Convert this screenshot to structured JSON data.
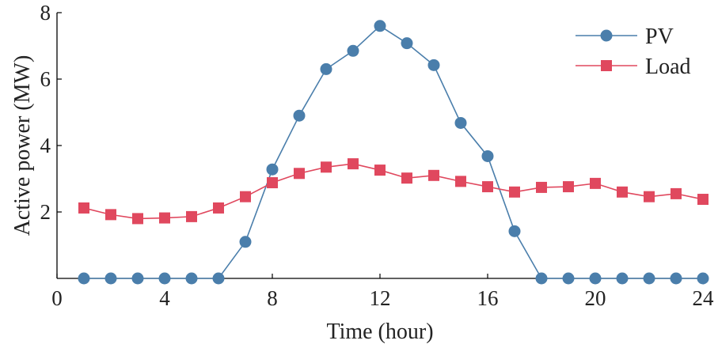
{
  "chart_data": {
    "type": "line",
    "title": "",
    "xlabel": "Time (hour)",
    "ylabel": "Active power (MW)",
    "xlim": [
      0,
      24
    ],
    "ylim": [
      0,
      8
    ],
    "xticks": [
      0,
      4,
      8,
      12,
      16,
      20,
      24
    ],
    "yticks": [
      2,
      4,
      6,
      8
    ],
    "grid": false,
    "legend_position": "top-right",
    "x": [
      1,
      2,
      3,
      4,
      5,
      6,
      7,
      8,
      9,
      10,
      11,
      12,
      13,
      14,
      15,
      16,
      17,
      18,
      19,
      20,
      21,
      22,
      23,
      24
    ],
    "series": [
      {
        "name": "PV",
        "color": "#4a7eab",
        "marker": "circle",
        "values": [
          0,
          0,
          0,
          0,
          0,
          0,
          1.1,
          3.28,
          4.9,
          6.3,
          6.85,
          7.6,
          7.08,
          6.42,
          4.68,
          3.68,
          1.42,
          0,
          0,
          0,
          0,
          0,
          0,
          0
        ]
      },
      {
        "name": "Load",
        "color": "#e0485e",
        "marker": "square",
        "values": [
          2.12,
          1.92,
          1.8,
          1.82,
          1.86,
          2.12,
          2.46,
          2.88,
          3.16,
          3.35,
          3.45,
          3.26,
          3.02,
          3.1,
          2.92,
          2.76,
          2.6,
          2.74,
          2.76,
          2.86,
          2.6,
          2.46,
          2.55,
          2.38
        ]
      }
    ]
  }
}
